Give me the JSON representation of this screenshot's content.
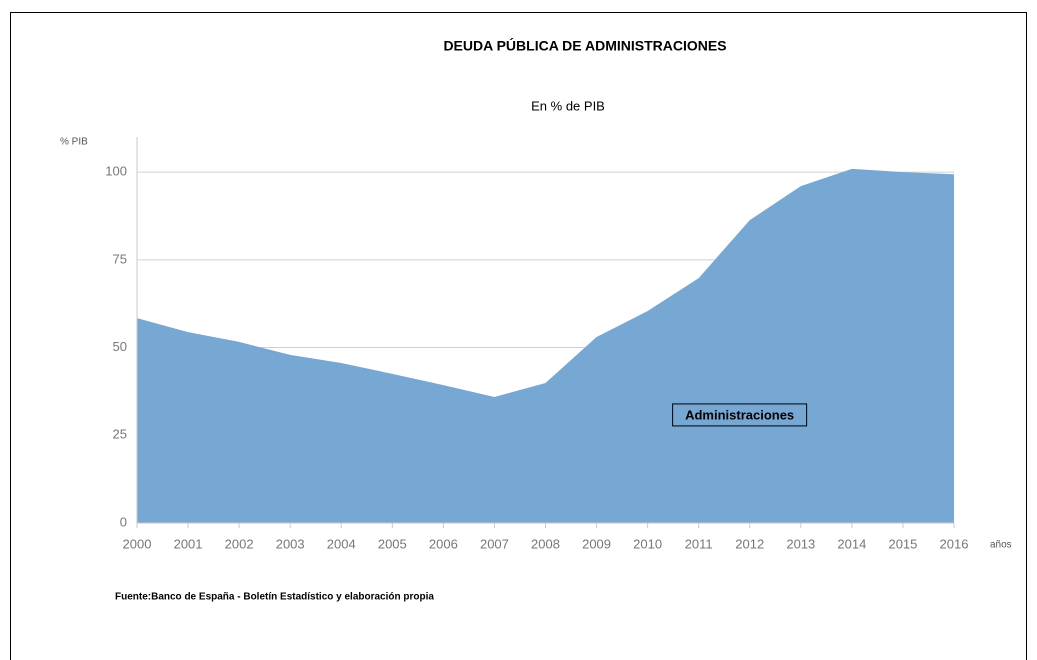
{
  "chart_data": {
    "type": "area",
    "title": "DEUDA PÚBLICA  DE ADMINISTRACIONES",
    "subtitle": "En % de PIB",
    "y_label": "% PIB",
    "x_label": "años",
    "source": "Fuente:Banco de España - Boletín Estadístico y elaboración propia",
    "x": [
      2000,
      2001,
      2002,
      2003,
      2004,
      2005,
      2006,
      2007,
      2008,
      2009,
      2010,
      2011,
      2012,
      2013,
      2014,
      2015,
      2016
    ],
    "series": [
      {
        "name": "Administraciones",
        "color": "#77a7d3",
        "values": [
          58.4,
          54.4,
          51.6,
          47.9,
          45.6,
          42.5,
          39.3,
          35.9,
          39.9,
          53.0,
          60.4,
          69.8,
          86.3,
          96.0,
          100.9,
          100.0,
          99.4
        ]
      }
    ],
    "xlim": [
      2000,
      2016
    ],
    "xticks": [
      2000,
      2001,
      2002,
      2003,
      2004,
      2005,
      2006,
      2007,
      2008,
      2009,
      2010,
      2011,
      2012,
      2013,
      2014,
      2015,
      2016
    ],
    "ylim": [
      0,
      110
    ],
    "yticks": [
      0,
      25,
      50,
      75,
      100
    ],
    "grid": true
  }
}
